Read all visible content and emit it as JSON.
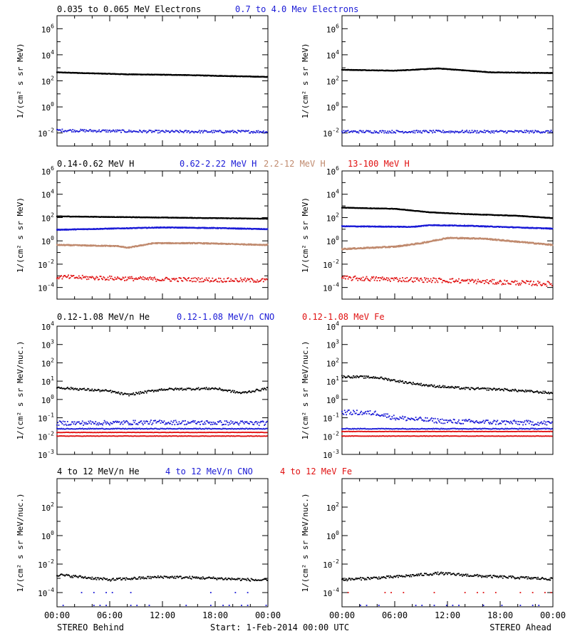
{
  "colors": {
    "black": "#000000",
    "blue": "#1a1ad6",
    "tan": "#c08a6e",
    "red": "#e01010"
  },
  "row_titles": [
    [
      {
        "text": "0.035 to 0.065 MeV Electrons",
        "color": "#000000"
      },
      {
        "text": "0.7 to 4.0 Mev Electrons",
        "color": "#1a1ad6"
      }
    ],
    [
      {
        "text": "0.14-0.62 MeV H",
        "color": "#000000"
      },
      {
        "text": "0.62-2.22 MeV H",
        "color": "#1a1ad6"
      },
      {
        "text": "2.2-12 MeV H",
        "color": "#c08a6e"
      },
      {
        "text": "13-100 MeV H",
        "color": "#e01010"
      }
    ],
    [
      {
        "text": "0.12-1.08 MeV/n He",
        "color": "#000000"
      },
      {
        "text": "0.12-1.08 MeV/n CNO",
        "color": "#1a1ad6"
      },
      {
        "text": "0.12-1.08 MeV Fe",
        "color": "#e01010"
      }
    ],
    [
      {
        "text": "4 to 12 MeV/n He",
        "color": "#000000"
      },
      {
        "text": "4 to 12 MeV/n CNO",
        "color": "#1a1ad6"
      },
      {
        "text": "4 to 12 MeV Fe",
        "color": "#e01010"
      }
    ]
  ],
  "footer": {
    "left": "STEREO Behind",
    "center": "Start:  1-Feb-2014 00:00 UTC",
    "right": "STEREO Ahead"
  },
  "x_tick_labels": [
    "00:00",
    "06:00",
    "12:00",
    "18:00",
    "00:00"
  ],
  "chart_data": [
    {
      "type": "scatter",
      "row": 0,
      "spacecraft": "STEREO Behind",
      "ylabel": "1/(cm² s sr MeV)",
      "yscale": "log",
      "ylim_exp": [
        -3,
        7
      ],
      "yticks": [
        {
          "exp": -2,
          "label": "10-2"
        },
        {
          "exp": 0,
          "label": "100"
        },
        {
          "exp": 2,
          "label": "102"
        },
        {
          "exp": 4,
          "label": "104"
        },
        {
          "exp": 6,
          "label": "106"
        }
      ],
      "xlim_hours": [
        0,
        24
      ],
      "series": [
        {
          "color": "#000000",
          "style": "line",
          "points": [
            [
              0,
              2.65
            ],
            [
              8,
              2.5
            ],
            [
              14,
              2.45
            ],
            [
              24,
              2.3
            ]
          ],
          "noise": 0.02
        },
        {
          "color": "#1a1ad6",
          "style": "scatter",
          "points": [
            [
              0,
              -1.8
            ],
            [
              6,
              -1.85
            ],
            [
              12,
              -1.9
            ],
            [
              24,
              -1.9
            ]
          ],
          "noise": 0.1
        }
      ]
    },
    {
      "type": "scatter",
      "row": 0,
      "spacecraft": "STEREO Ahead",
      "ylabel": "1/(cm² s sr MeV)",
      "yscale": "log",
      "ylim_exp": [
        -3,
        7
      ],
      "yticks": [
        {
          "exp": -2,
          "label": "10-2"
        },
        {
          "exp": 0,
          "label": "100"
        },
        {
          "exp": 2,
          "label": "102"
        },
        {
          "exp": 4,
          "label": "104"
        },
        {
          "exp": 6,
          "label": "106"
        }
      ],
      "xlim_hours": [
        0,
        24
      ],
      "series": [
        {
          "color": "#000000",
          "style": "line",
          "points": [
            [
              0,
              2.85
            ],
            [
              6,
              2.78
            ],
            [
              11,
              2.95
            ],
            [
              17,
              2.65
            ],
            [
              24,
              2.6
            ]
          ],
          "noise": 0.02
        },
        {
          "color": "#1a1ad6",
          "style": "scatter",
          "points": [
            [
              0,
              -1.9
            ],
            [
              12,
              -1.9
            ],
            [
              24,
              -1.9
            ]
          ],
          "noise": 0.1
        }
      ]
    },
    {
      "type": "scatter",
      "row": 1,
      "spacecraft": "STEREO Behind",
      "ylabel": "1/(cm² s sr MeV)",
      "yscale": "log",
      "ylim_exp": [
        -5,
        6
      ],
      "yticks": [
        {
          "exp": -4,
          "label": "10-4"
        },
        {
          "exp": -2,
          "label": "10-2"
        },
        {
          "exp": 0,
          "label": "100"
        },
        {
          "exp": 2,
          "label": "102"
        },
        {
          "exp": 4,
          "label": "104"
        },
        {
          "exp": 6,
          "label": "106"
        }
      ],
      "xlim_hours": [
        0,
        24
      ],
      "series": [
        {
          "color": "#000000",
          "style": "line",
          "points": [
            [
              0,
              2.1
            ],
            [
              12,
              2.0
            ],
            [
              24,
              1.9
            ]
          ],
          "noise": 0.02
        },
        {
          "color": "#1a1ad6",
          "style": "line",
          "points": [
            [
              0,
              0.95
            ],
            [
              12,
              1.15
            ],
            [
              18,
              1.1
            ],
            [
              24,
              1.0
            ]
          ],
          "noise": 0.03
        },
        {
          "color": "#c08a6e",
          "style": "line",
          "points": [
            [
              0,
              -0.35
            ],
            [
              7,
              -0.45
            ],
            [
              8,
              -0.6
            ],
            [
              11,
              -0.2
            ],
            [
              16,
              -0.2
            ],
            [
              24,
              -0.35
            ]
          ],
          "noise": 0.04
        },
        {
          "color": "#e01010",
          "style": "scatter",
          "points": [
            [
              0,
              -3.1
            ],
            [
              12,
              -3.3
            ],
            [
              24,
              -3.4
            ]
          ],
          "noise": 0.18
        }
      ]
    },
    {
      "type": "scatter",
      "row": 1,
      "spacecraft": "STEREO Ahead",
      "ylabel": "1/(cm² s sr MeV)",
      "yscale": "log",
      "ylim_exp": [
        -5,
        6
      ],
      "yticks": [
        {
          "exp": -4,
          "label": "10-4"
        },
        {
          "exp": -2,
          "label": "10-2"
        },
        {
          "exp": 0,
          "label": "100"
        },
        {
          "exp": 2,
          "label": "102"
        },
        {
          "exp": 4,
          "label": "104"
        },
        {
          "exp": 6,
          "label": "106"
        }
      ],
      "xlim_hours": [
        0,
        24
      ],
      "series": [
        {
          "color": "#000000",
          "style": "line",
          "points": [
            [
              0,
              2.85
            ],
            [
              6,
              2.75
            ],
            [
              10,
              2.45
            ],
            [
              14,
              2.3
            ],
            [
              20,
              2.15
            ],
            [
              24,
              1.95
            ]
          ],
          "noise": 0.02
        },
        {
          "color": "#1a1ad6",
          "style": "line",
          "points": [
            [
              0,
              1.25
            ],
            [
              8,
              1.2
            ],
            [
              10,
              1.35
            ],
            [
              14,
              1.3
            ],
            [
              20,
              1.15
            ],
            [
              24,
              1.05
            ]
          ],
          "noise": 0.03
        },
        {
          "color": "#c08a6e",
          "style": "line",
          "points": [
            [
              0,
              -0.7
            ],
            [
              6,
              -0.5
            ],
            [
              9,
              -0.2
            ],
            [
              12,
              0.25
            ],
            [
              16,
              0.2
            ],
            [
              24,
              -0.35
            ]
          ],
          "noise": 0.05
        },
        {
          "color": "#e01010",
          "style": "scatter",
          "points": [
            [
              0,
              -3.2
            ],
            [
              12,
              -3.4
            ],
            [
              24,
              -3.7
            ]
          ],
          "noise": 0.2
        }
      ]
    },
    {
      "type": "scatter",
      "row": 2,
      "spacecraft": "STEREO Behind",
      "ylabel": "1/(cm² s sr MeV/nuc.)",
      "yscale": "log",
      "ylim_exp": [
        -3,
        4
      ],
      "yticks": [
        {
          "exp": -3,
          "label": "10-3"
        },
        {
          "exp": -2,
          "label": "10-2"
        },
        {
          "exp": -1,
          "label": "10-1"
        },
        {
          "exp": 0,
          "label": "100"
        },
        {
          "exp": 1,
          "label": "101"
        },
        {
          "exp": 2,
          "label": "102"
        },
        {
          "exp": 3,
          "label": "103"
        },
        {
          "exp": 4,
          "label": "104"
        }
      ],
      "xlim_hours": [
        0,
        24
      ],
      "series": [
        {
          "color": "#000000",
          "style": "scatter",
          "points": [
            [
              0,
              0.65
            ],
            [
              6,
              0.45
            ],
            [
              8,
              0.25
            ],
            [
              12,
              0.55
            ],
            [
              18,
              0.6
            ],
            [
              21,
              0.35
            ],
            [
              24,
              0.6
            ]
          ],
          "noise": 0.06
        },
        {
          "color": "#1a1ad6",
          "style": "scatter",
          "points": [
            [
              0,
              -1.3
            ],
            [
              12,
              -1.25
            ],
            [
              24,
              -1.3
            ]
          ],
          "noise": 0.12
        },
        {
          "color": "#1a1ad6",
          "style": "scatter",
          "points": [
            [
              0,
              -1.6
            ],
            [
              24,
              -1.6
            ]
          ],
          "noise": 0.02
        },
        {
          "color": "#e01010",
          "style": "scatter",
          "points": [
            [
              0,
              -1.8
            ],
            [
              24,
              -1.8
            ]
          ],
          "noise": 0.01
        },
        {
          "color": "#e01010",
          "style": "scatter",
          "points": [
            [
              0,
              -2.0
            ],
            [
              24,
              -2.0
            ]
          ],
          "noise": 0.01
        }
      ]
    },
    {
      "type": "scatter",
      "row": 2,
      "spacecraft": "STEREO Ahead",
      "ylabel": "1/(cm² s sr MeV/nuc.)",
      "yscale": "log",
      "ylim_exp": [
        -3,
        4
      ],
      "yticks": [
        {
          "exp": -3,
          "label": "10-3"
        },
        {
          "exp": -2,
          "label": "10-2"
        },
        {
          "exp": -1,
          "label": "10-1"
        },
        {
          "exp": 0,
          "label": "100"
        },
        {
          "exp": 1,
          "label": "101"
        },
        {
          "exp": 2,
          "label": "102"
        },
        {
          "exp": 3,
          "label": "103"
        },
        {
          "exp": 4,
          "label": "104"
        }
      ],
      "xlim_hours": [
        0,
        24
      ],
      "series": [
        {
          "color": "#000000",
          "style": "scatter",
          "points": [
            [
              0,
              1.25
            ],
            [
              4,
              1.2
            ],
            [
              7,
              0.95
            ],
            [
              10,
              0.75
            ],
            [
              14,
              0.6
            ],
            [
              18,
              0.55
            ],
            [
              24,
              0.35
            ]
          ],
          "noise": 0.06
        },
        {
          "color": "#1a1ad6",
          "style": "scatter",
          "points": [
            [
              0,
              -0.7
            ],
            [
              4,
              -0.75
            ],
            [
              6,
              -1.0
            ],
            [
              12,
              -1.2
            ],
            [
              24,
              -1.3
            ]
          ],
          "noise": 0.13
        },
        {
          "color": "#1a1ad6",
          "style": "scatter",
          "points": [
            [
              0,
              -1.6
            ],
            [
              24,
              -1.6
            ]
          ],
          "noise": 0.02
        },
        {
          "color": "#e01010",
          "style": "scatter",
          "points": [
            [
              0,
              -1.75
            ],
            [
              24,
              -1.75
            ]
          ],
          "noise": 0.01
        },
        {
          "color": "#e01010",
          "style": "scatter",
          "points": [
            [
              0,
              -2.0
            ],
            [
              24,
              -2.0
            ]
          ],
          "noise": 0.01
        }
      ]
    },
    {
      "type": "scatter",
      "row": 3,
      "spacecraft": "STEREO Behind",
      "ylabel": "1/(cm² s sr MeV/nuc.)",
      "yscale": "log",
      "ylim_exp": [
        -5,
        4
      ],
      "yticks": [
        {
          "exp": -4,
          "label": "10-4"
        },
        {
          "exp": -2,
          "label": "10-2"
        },
        {
          "exp": 0,
          "label": "100"
        },
        {
          "exp": 2,
          "label": "102"
        }
      ],
      "xlim_hours": [
        0,
        24
      ],
      "series": [
        {
          "color": "#000000",
          "style": "scatter",
          "points": [
            [
              0,
              -2.75
            ],
            [
              6,
              -3.1
            ],
            [
              12,
              -2.9
            ],
            [
              18,
              -3.0
            ],
            [
              24,
              -3.15
            ]
          ],
          "noise": 0.09
        },
        {
          "color": "#1a1ad6",
          "style": "sparse",
          "points": [
            [
              0,
              -4.0
            ],
            [
              24,
              -4.0
            ]
          ],
          "noise": 0.0
        },
        {
          "color": "#1a1ad6",
          "style": "sparse",
          "points": [
            [
              0,
              -4.9
            ],
            [
              24,
              -4.9
            ]
          ],
          "noise": 0.0
        }
      ]
    },
    {
      "type": "scatter",
      "row": 3,
      "spacecraft": "STEREO Ahead",
      "ylabel": "1/(cm² s sr MeV/nuc.)",
      "yscale": "log",
      "ylim_exp": [
        -5,
        4
      ],
      "yticks": [
        {
          "exp": -4,
          "label": "10-4"
        },
        {
          "exp": -2,
          "label": "10-2"
        },
        {
          "exp": 0,
          "label": "100"
        },
        {
          "exp": 2,
          "label": "102"
        }
      ],
      "xlim_hours": [
        0,
        24
      ],
      "series": [
        {
          "color": "#000000",
          "style": "scatter",
          "points": [
            [
              0,
              -3.1
            ],
            [
              6,
              -2.9
            ],
            [
              11,
              -2.65
            ],
            [
              16,
              -2.85
            ],
            [
              24,
              -3.05
            ]
          ],
          "noise": 0.09
        },
        {
          "color": "#e01010",
          "style": "sparse",
          "points": [
            [
              0,
              -4.0
            ],
            [
              24,
              -4.0
            ]
          ],
          "noise": 0.0
        },
        {
          "color": "#1a1ad6",
          "style": "sparse",
          "points": [
            [
              0,
              -4.9
            ],
            [
              24,
              -4.9
            ]
          ],
          "noise": 0.0
        }
      ]
    }
  ]
}
